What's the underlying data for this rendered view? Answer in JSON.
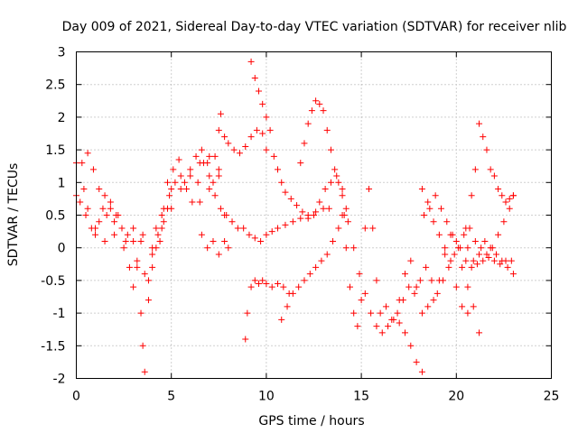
{
  "chart_data": {
    "type": "scatter",
    "title": "Day 009 of 2021, Sidereal Day-to-day VTEC variation (SDTVAR) for receiver nlib",
    "xlabel": "GPS time / hours",
    "ylabel": "SDTVAR / TECUs",
    "xlim": [
      0,
      25
    ],
    "ylim": [
      -2,
      3
    ],
    "xticks": [
      "0",
      "5",
      "10",
      "15",
      "20",
      "25"
    ],
    "yticks": [
      "3",
      "2.5",
      "2",
      "1.5",
      "1",
      "0.5",
      "0",
      "-0.5",
      "-1",
      "-1.5",
      "-2"
    ],
    "grid": true,
    "marker": "+",
    "marker_color": "#ff0000",
    "series": [
      {
        "x": [
          0.0,
          0.3,
          0.6,
          0.9,
          1.2,
          1.5,
          1.8,
          2.1,
          2.4,
          2.7,
          3.0,
          3.2,
          3.4,
          3.5,
          3.6,
          3.8,
          4.0,
          4.2
        ],
        "y": [
          1.3,
          1.3,
          1.45,
          1.2,
          0.9,
          0.8,
          0.6,
          0.5,
          0.3,
          0.2,
          0.1,
          -0.3,
          -1.0,
          -1.5,
          -1.9,
          -0.8,
          -0.3,
          0.0
        ]
      },
      {
        "x": [
          0.0,
          0.2,
          0.4,
          0.6,
          0.8,
          1.0,
          1.2,
          1.4,
          1.6,
          1.8,
          2.0,
          2.2,
          2.4,
          2.6,
          2.8,
          3.0,
          3.2,
          3.4,
          3.6,
          3.8,
          4.0,
          4.2,
          4.4,
          4.6,
          4.8,
          5.0
        ],
        "y": [
          0.8,
          0.7,
          0.9,
          0.6,
          0.3,
          0.2,
          0.4,
          0.6,
          0.5,
          0.7,
          0.4,
          0.5,
          0.3,
          0.1,
          -0.3,
          -0.6,
          -0.2,
          0.1,
          -0.4,
          -0.5,
          0.0,
          0.3,
          0.1,
          0.4,
          0.6,
          0.9
        ]
      },
      {
        "x": [
          0.5,
          1.0,
          1.5,
          2.0,
          2.5,
          3.0,
          3.5,
          4.0,
          4.5,
          5.0,
          5.5,
          6.0,
          6.5,
          7.0,
          7.5
        ],
        "y": [
          0.5,
          0.3,
          0.1,
          0.2,
          0.0,
          0.3,
          0.2,
          -0.1,
          0.3,
          0.6,
          0.9,
          1.1,
          1.3,
          1.4,
          1.2
        ]
      },
      {
        "x": [
          4.5,
          4.8,
          5.1,
          5.4,
          5.7,
          6.0,
          6.3,
          6.6,
          6.9,
          7.2,
          7.5,
          7.8
        ],
        "y": [
          0.5,
          1.0,
          1.2,
          1.35,
          1.0,
          1.2,
          1.4,
          1.5,
          1.3,
          1.0,
          1.1,
          0.5
        ]
      },
      {
        "x": [
          4.3,
          4.6,
          4.9,
          5.2,
          5.5,
          5.8,
          6.1,
          6.4,
          6.7,
          7.0,
          7.3,
          7.6,
          7.9,
          8.2,
          8.5,
          8.8,
          9.1,
          9.4,
          9.7,
          10.0,
          10.3,
          10.6,
          11.0,
          11.4,
          11.8,
          12.2,
          12.6,
          13.0,
          13.3
        ],
        "y": [
          0.2,
          0.6,
          0.8,
          1.0,
          1.1,
          0.9,
          0.7,
          1.0,
          1.3,
          1.1,
          0.8,
          0.6,
          0.5,
          0.4,
          0.3,
          0.3,
          0.2,
          0.15,
          0.1,
          0.2,
          0.25,
          0.3,
          0.35,
          0.4,
          0.45,
          0.5,
          0.55,
          0.6,
          0.6
        ]
      },
      {
        "x": [
          6.5,
          7.0,
          7.3,
          7.5,
          7.6,
          7.8,
          8.0,
          8.3,
          8.6,
          8.9,
          9.2,
          9.5,
          9.8,
          10.0
        ],
        "y": [
          0.7,
          0.9,
          1.4,
          1.8,
          2.05,
          1.7,
          1.6,
          1.5,
          1.45,
          1.55,
          1.7,
          1.8,
          1.75,
          1.5
        ]
      },
      {
        "x": [
          6.6,
          6.9,
          7.2,
          7.5,
          7.8,
          8.0
        ],
        "y": [
          0.2,
          0.0,
          0.1,
          -0.1,
          0.1,
          0.0
        ]
      },
      {
        "x": [
          9.2,
          9.4,
          9.6,
          9.8,
          10.0,
          10.2,
          10.4,
          10.6,
          10.8,
          11.0,
          11.3,
          11.6,
          11.9,
          12.2,
          12.5,
          12.8,
          13.1,
          13.4,
          13.7,
          14.0,
          14.3,
          14.6,
          14.9,
          15.2,
          15.5,
          15.8,
          16.1,
          16.4,
          16.7,
          17.0,
          17.3,
          17.6,
          17.9,
          18.2
        ],
        "y": [
          2.85,
          2.6,
          2.4,
          2.2,
          2.0,
          1.8,
          1.4,
          1.2,
          1.0,
          0.85,
          0.75,
          0.65,
          0.55,
          0.45,
          0.5,
          0.7,
          0.9,
          1.0,
          1.1,
          0.9,
          0.4,
          0.0,
          -0.4,
          -0.7,
          -1.0,
          -1.2,
          -1.3,
          -1.2,
          -1.1,
          -1.15,
          -1.3,
          -1.5,
          -1.75,
          -1.9
        ]
      },
      {
        "x": [
          8.9,
          9.0,
          9.2,
          9.4,
          9.6,
          9.8,
          10.0,
          10.3,
          10.6,
          10.9,
          11.2
        ],
        "y": [
          -1.4,
          -1.0,
          -0.6,
          -0.5,
          -0.55,
          -0.5,
          -0.55,
          -0.6,
          -0.55,
          -0.6,
          -0.7
        ]
      },
      {
        "x": [
          10.8,
          11.1,
          11.4,
          11.7,
          12.0,
          12.3,
          12.6,
          12.9,
          13.2,
          13.5,
          13.8,
          14.1
        ],
        "y": [
          -1.1,
          -0.9,
          -0.7,
          -0.6,
          -0.5,
          -0.4,
          -0.3,
          -0.2,
          -0.1,
          0.1,
          0.3,
          0.5
        ]
      },
      {
        "x": [
          11.8,
          12.0,
          12.2,
          12.4,
          12.6,
          12.8,
          13.0,
          13.2,
          13.4,
          13.6,
          13.8,
          14.0,
          14.2
        ],
        "y": [
          1.3,
          1.6,
          1.9,
          2.1,
          2.25,
          2.2,
          2.1,
          1.8,
          1.5,
          1.2,
          1.0,
          0.8,
          0.6
        ]
      },
      {
        "x": [
          14.0,
          14.2,
          14.4,
          14.6,
          14.8,
          15.0,
          15.2,
          15.4,
          15.6,
          15.8,
          16.0,
          16.3,
          16.6,
          16.9,
          17.2,
          17.5,
          17.8,
          18.1,
          18.4,
          18.7,
          19.0,
          19.3,
          19.6,
          19.9,
          20.2,
          20.5,
          20.8,
          21.1,
          21.4,
          21.7,
          22.0,
          22.3,
          22.6,
          22.9
        ],
        "y": [
          0.5,
          0.0,
          -0.6,
          -1.0,
          -1.2,
          -0.8,
          0.3,
          0.9,
          0.3,
          -0.5,
          -1.0,
          -0.9,
          -1.1,
          -1.0,
          -0.8,
          -0.6,
          -0.7,
          -0.5,
          -0.3,
          -0.5,
          -0.7,
          -0.5,
          -0.3,
          -0.1,
          0.0,
          -0.2,
          -0.3,
          -0.25,
          -0.2,
          -0.15,
          -0.2,
          -0.25,
          -0.2,
          -0.2
        ]
      },
      {
        "x": [
          17.0,
          17.3,
          17.6,
          17.9,
          18.2,
          18.5,
          18.8,
          19.1,
          19.4,
          19.7,
          20.0,
          20.3,
          20.6,
          20.9,
          21.2
        ],
        "y": [
          -0.8,
          -0.4,
          -0.2,
          -0.6,
          -1.0,
          -0.9,
          -0.8,
          -0.5,
          -0.1,
          0.2,
          0.1,
          -0.3,
          -0.6,
          -0.9,
          -1.3
        ]
      },
      {
        "x": [
          18.2,
          18.5,
          18.8,
          19.1,
          19.4,
          19.7,
          20.0,
          20.3,
          20.6
        ],
        "y": [
          0.9,
          0.7,
          0.4,
          0.2,
          0.0,
          -0.2,
          -0.6,
          -0.9,
          -1.0
        ]
      },
      {
        "x": [
          18.3,
          18.6,
          18.9,
          19.2,
          19.5,
          19.8,
          20.1,
          20.4,
          20.7,
          21.0,
          21.3,
          21.6,
          21.9,
          22.2,
          22.5,
          22.8,
          23.0
        ],
        "y": [
          0.5,
          0.6,
          0.8,
          0.6,
          0.4,
          0.2,
          0.0,
          0.2,
          0.3,
          0.1,
          0.0,
          -0.1,
          0.0,
          0.2,
          0.4,
          0.6,
          0.8
        ]
      },
      {
        "x": [
          20.5,
          20.8,
          21.0,
          21.2,
          21.4,
          21.6,
          21.8,
          22.0,
          22.2,
          22.4,
          22.6,
          22.8,
          23.0
        ],
        "y": [
          0.3,
          0.8,
          1.2,
          1.9,
          1.7,
          1.5,
          1.2,
          1.1,
          0.9,
          0.8,
          0.7,
          0.75,
          0.8
        ]
      },
      {
        "x": [
          20.6,
          20.9,
          21.2,
          21.5,
          21.8,
          22.1,
          22.4,
          22.7,
          23.0
        ],
        "y": [
          0.0,
          -0.2,
          -0.1,
          0.1,
          0.0,
          -0.1,
          -0.2,
          -0.3,
          -0.4
        ]
      }
    ]
  }
}
